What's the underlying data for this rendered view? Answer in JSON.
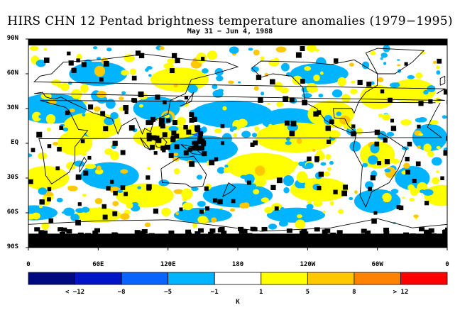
{
  "title": "HIRS CHN 12 Pentad brightness temperature anomalies (1979−1995)",
  "subtitle": "May 31 − Jun 4, 1988",
  "lat_labels": [
    "90N",
    "60N",
    "30N",
    "EQ",
    "30S",
    "60S",
    "90S"
  ],
  "lon_labels": [
    "0",
    "60E",
    "120E",
    "180",
    "120W",
    "60W",
    "0"
  ],
  "colorbar": {
    "colors": [
      "#000a80",
      "#0014c8",
      "#0a64ff",
      "#00b4ff",
      "#ffffff",
      "#ffff00",
      "#ffc800",
      "#ff8200",
      "#ff0000"
    ],
    "labels": [
      "< −12",
      "−8",
      "−5",
      "−1",
      "1",
      "5",
      "8",
      "> 12"
    ],
    "unit": "K"
  },
  "colors": {
    "missing": "#000000",
    "land_outline": "#000000"
  }
}
